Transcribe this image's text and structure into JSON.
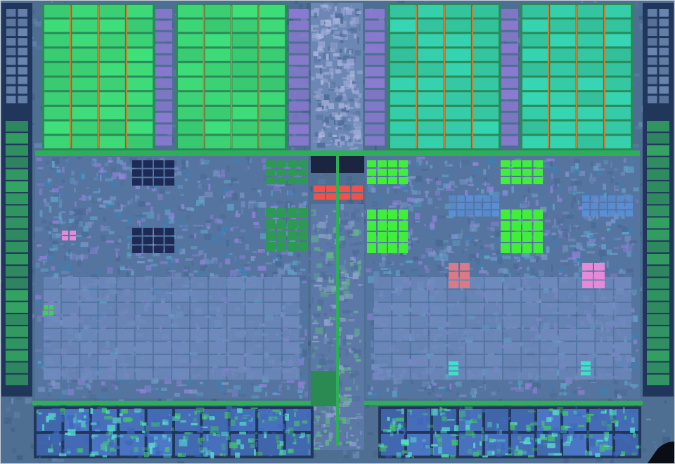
{
  "image": {
    "subject": "processor-die-micrograph",
    "palette": {
      "base": "#4e6f92",
      "bus_green": "#2fae5a",
      "cache_green": "#3fe07a",
      "cache_cyan": "#37d6b4",
      "logic_blue": "#6a86b4",
      "logic_violet": "#8a7ad0",
      "dark_block": "#1c2a55",
      "bright_green": "#41ee3a",
      "red_block": "#f0524a",
      "pink_block": "#e48ad8",
      "salmon_block": "#d97a86",
      "orange_line": "#f07a2a",
      "io_dark": "#20365a"
    }
  }
}
